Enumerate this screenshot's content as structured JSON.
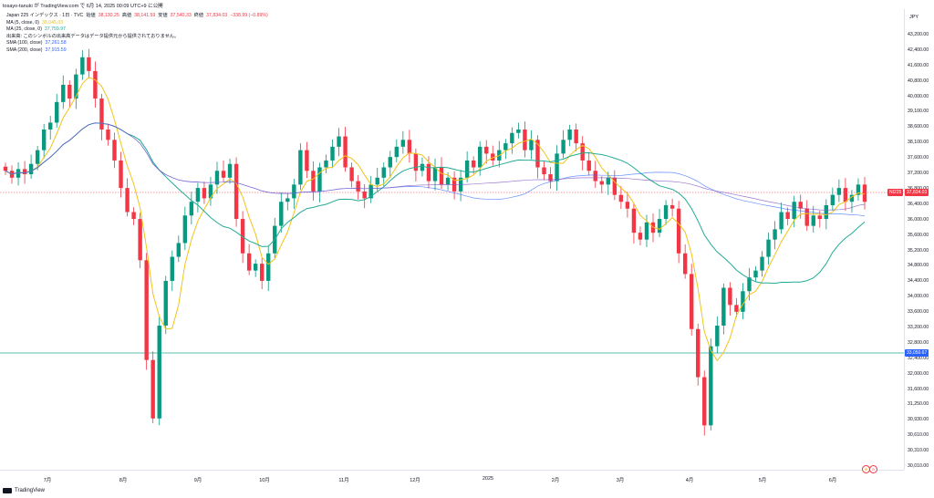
{
  "header": {
    "topline": "tosayo-tanuki が TradingView.com で 6月 14, 2025 00:09 UTC+9 に公開"
  },
  "legend": {
    "symbol": "Japan 225 インデックス · 1日 · TVC",
    "open_label": "始値",
    "open": "38,130.25",
    "high_label": "高値",
    "high": "38,141.59",
    "low_label": "安値",
    "low": "37,540.33",
    "close_label": "終値",
    "close": "37,834.03",
    "change": "−338.99 (−0.89%)",
    "indicators": [
      {
        "label": "MA (5, close, 0)",
        "value": "38,045.03",
        "color": "#f0c419"
      },
      {
        "label": "MA (25, close, 0)",
        "value": "37,759.97",
        "color": "#22ab94"
      },
      {
        "label": "出来高: このシンボルの出来高データはデータ提供元から提供されておりません。",
        "value": "",
        "color": "#131722"
      },
      {
        "label": "SMA (100, close)",
        "value": "37,261.58",
        "color": "#2962ff"
      },
      {
        "label": "SMA (200, close)",
        "value": "37,915.59",
        "color": "#7e57c2"
      }
    ]
  },
  "axis": {
    "currency": "JPY",
    "y_labels": [
      "43,200.00",
      "42,400.00",
      "41,600.00",
      "40,800.00",
      "40,000.00",
      "39,100.00",
      "38,600.00",
      "38,100.00",
      "37,600.00",
      "37,200.00",
      "36,800.00",
      "36,400.00",
      "36,000.00",
      "35,600.00",
      "35,200.00",
      "34,800.00",
      "34,400.00",
      "34,000.00",
      "33,600.00",
      "33,200.00",
      "32,800.00",
      "32,400.00",
      "32,000.00",
      "31,600.00",
      "31,250.00",
      "30,930.00",
      "30,610.00",
      "30,310.00",
      "30,010.00"
    ],
    "x_labels": [
      "7月",
      "8月",
      "9月",
      "10月",
      "11月",
      "12月",
      "2025",
      "2月",
      "3月",
      "4月",
      "5月",
      "6月"
    ]
  },
  "tags": {
    "price_symbol": "NI225",
    "price_value": "37,834.03",
    "line_value": "33,050.67"
  },
  "footer": {
    "brand": "TradingView"
  },
  "colors": {
    "up": "#089981",
    "down": "#f23645",
    "ma5": "#f0c419",
    "ma25": "#22ab94",
    "sma100": "#2962ff",
    "sma200": "#7e57c2"
  },
  "chart_data": {
    "type": "candlestick",
    "title": "Japan 225 インデックス · 1日 · TVC",
    "ylim": [
      30010,
      43400
    ],
    "x_labels": [
      "7月",
      "8月",
      "9月",
      "10月",
      "11月",
      "12月",
      "2025",
      "2月",
      "3月",
      "4月",
      "5月",
      "6月"
    ],
    "closes": [
      38700,
      38500,
      38750,
      38600,
      38900,
      39300,
      39900,
      40100,
      40700,
      41200,
      40800,
      41500,
      42000,
      41600,
      40800,
      39900,
      39600,
      39000,
      38200,
      37500,
      37300,
      36100,
      33200,
      31500,
      34200,
      35500,
      36200,
      36600,
      37400,
      37800,
      38200,
      37900,
      38300,
      38700,
      38500,
      38900,
      37300,
      36300,
      35800,
      36000,
      35500,
      36300,
      37100,
      37800,
      37900,
      38300,
      39300,
      38700,
      38100,
      38800,
      39000,
      39400,
      39700,
      38800,
      38400,
      38100,
      37900,
      38300,
      38500,
      38800,
      39100,
      39400,
      39600,
      39200,
      38700,
      38900,
      38400,
      38800,
      38300,
      38500,
      38100,
      38500,
      39000,
      38800,
      39400,
      39200,
      39000,
      39300,
      39500,
      39800,
      39900,
      39300,
      39600,
      38800,
      38600,
      38400,
      39200,
      39600,
      39900,
      39500,
      39000,
      38700,
      38400,
      38300,
      38500,
      38000,
      37800,
      37600,
      36900,
      36700,
      37200,
      36900,
      37300,
      37700,
      37600,
      36300,
      35700,
      34100,
      32700,
      31300,
      33600,
      34200,
      35300,
      34800,
      34600,
      35200,
      35600,
      35800,
      36200,
      36700,
      37000,
      37500,
      37300,
      37800,
      37600,
      37100,
      37400,
      37300,
      37700,
      38000,
      38200,
      37800,
      38000,
      38300,
      37800
    ]
  }
}
